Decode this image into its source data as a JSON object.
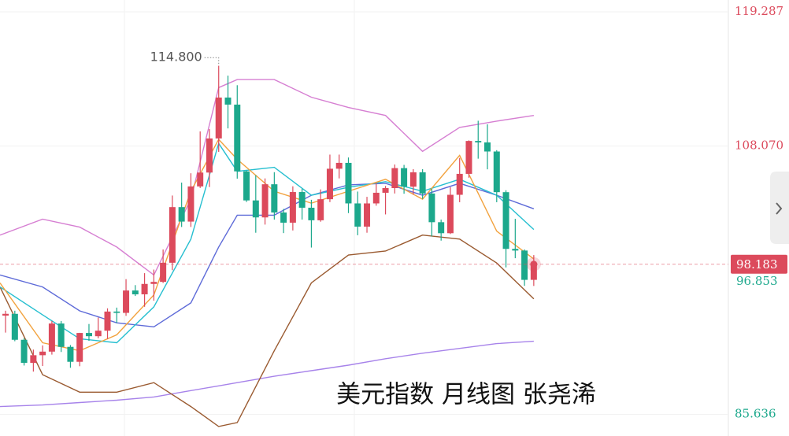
{
  "chart_data": {
    "type": "candlestick",
    "title": "美元指数 月线图 张尧浠",
    "up_color": "#dc4a5c",
    "down_color": "#1ca88c",
    "xlim": [
      -0.6,
      78
    ],
    "ylim": [
      83.827,
      120.274
    ],
    "yticks": [
      119.287,
      {
        "value": 108.07,
        "label": "108.070"
      },
      85.636
    ],
    "grid": true,
    "last_price": 98.183,
    "marker_value": 96.853,
    "peak_annotation": {
      "index": 23,
      "value": 114.8,
      "label": "114.800"
    },
    "open": [
      93.89,
      94.04,
      91.87,
      89.94,
      90.58,
      90.88,
      93.23,
      91.28,
      90.03,
      92.44,
      92.17,
      92.63,
      94.23,
      94.12,
      95.99,
      95.67,
      96.54,
      96.71,
      98.31,
      102.96,
      101.75,
      104.69,
      105.85,
      108.7,
      112.12,
      111.53,
      105.95,
      103.52,
      102.1,
      104.87,
      102.51,
      101.66,
      104.22,
      102.91,
      101.86,
      103.62,
      106.17,
      106.66,
      103.27,
      101.33,
      103.27,
      104.16,
      104.55,
      106.22,
      104.67,
      105.87,
      104.1,
      101.7,
      100.78,
      103.99,
      105.74,
      108.49,
      108.37,
      107.61,
      104.21,
      99.47,
      99.33,
      96.88
    ],
    "high": [
      94.3,
      94.3,
      92.0,
      91.05,
      91.4,
      93.44,
      93.44,
      91.43,
      92.45,
      93.19,
      93.73,
      94.5,
      94.56,
      96.94,
      96.44,
      97.44,
      97.74,
      99.42,
      103.93,
      105.01,
      105.79,
      109.29,
      109.48,
      114.78,
      113.95,
      113.15,
      106.02,
      105.63,
      105.36,
      105.88,
      102.81,
      104.7,
      104.5,
      103.57,
      104.44,
      107.35,
      107.35,
      107.11,
      104.26,
      103.82,
      104.97,
      104.73,
      106.52,
      106.49,
      106.13,
      106.13,
      104.5,
      101.92,
      104.63,
      107.07,
      108.54,
      110.18,
      109.88,
      107.72,
      104.37,
      101.98,
      99.42,
      98.95
    ],
    "low": [
      92.47,
      91.75,
      89.72,
      89.21,
      89.68,
      90.63,
      90.85,
      89.53,
      89.66,
      91.78,
      92.0,
      91.94,
      93.28,
      93.87,
      95.53,
      94.63,
      95.14,
      96.62,
      97.69,
      101.3,
      101.3,
      104.56,
      104.64,
      107.58,
      109.54,
      105.34,
      103.39,
      100.82,
      101.5,
      101.92,
      100.79,
      101.01,
      101.92,
      99.58,
      101.74,
      103.38,
      105.36,
      102.46,
      100.61,
      100.82,
      103.08,
      102.35,
      104.1,
      104.08,
      104.0,
      103.65,
      100.51,
      100.16,
      100.71,
      103.37,
      105.42,
      107.01,
      106.12,
      103.37,
      97.92,
      98.69,
      96.38,
      96.37
    ],
    "close": [
      94.04,
      91.87,
      89.94,
      90.58,
      90.88,
      93.23,
      91.28,
      90.03,
      92.44,
      92.17,
      92.63,
      94.23,
      94.12,
      95.99,
      95.67,
      96.54,
      96.71,
      98.31,
      102.96,
      101.75,
      104.69,
      105.85,
      108.7,
      112.12,
      111.53,
      105.95,
      103.52,
      102.1,
      104.87,
      102.51,
      101.66,
      104.22,
      102.91,
      101.86,
      103.62,
      106.17,
      106.66,
      103.27,
      101.33,
      103.27,
      104.16,
      104.55,
      106.22,
      104.67,
      105.87,
      104.1,
      101.7,
      100.78,
      103.99,
      105.74,
      108.49,
      108.37,
      107.61,
      104.21,
      99.47,
      99.33,
      96.88,
      98.183
    ],
    "series": [
      {
        "color": "#a783ea",
        "x": [
          -0.6,
          4,
          8,
          12,
          16,
          20,
          23,
          25,
          29,
          33,
          37,
          41,
          45,
          49,
          53,
          57
        ],
        "values": [
          86.29,
          86.42,
          86.62,
          86.82,
          87.09,
          87.62,
          88.02,
          88.29,
          88.82,
          89.29,
          89.75,
          90.29,
          90.75,
          91.15,
          91.55,
          91.75
        ]
      },
      {
        "color": "#d67fd2",
        "x": [
          -0.6,
          4,
          8,
          12,
          16,
          20,
          23,
          25,
          29,
          33,
          37,
          41,
          45,
          49,
          53,
          57
        ],
        "values": [
          100.62,
          101.95,
          101.29,
          99.62,
          97.29,
          103.62,
          112.95,
          113.62,
          113.62,
          112.15,
          111.29,
          110.62,
          107.62,
          109.62,
          110.15,
          110.62
        ]
      },
      {
        "color": "#9a5a30",
        "x": [
          -0.6,
          4,
          8,
          12,
          16,
          20,
          23,
          25,
          29,
          33,
          37,
          41,
          45,
          49,
          53,
          57
        ],
        "values": [
          96.29,
          88.95,
          87.49,
          87.49,
          88.29,
          86.29,
          84.62,
          84.95,
          90.95,
          96.62,
          98.95,
          99.29,
          100.62,
          100.29,
          98.29,
          95.29
        ]
      },
      {
        "color": "#5d6ad8",
        "x": [
          -0.6,
          4,
          8,
          12,
          16,
          20,
          23,
          25,
          29,
          33,
          37,
          41,
          45,
          49,
          53,
          57
        ],
        "values": [
          97.29,
          96.29,
          94.29,
          93.29,
          92.95,
          94.95,
          99.62,
          102.29,
          102.29,
          103.95,
          104.82,
          104.95,
          103.95,
          104.95,
          103.95,
          102.82
        ]
      },
      {
        "color": "#26bfd0",
        "x": [
          -0.6,
          4,
          8,
          12,
          16,
          20,
          23,
          25,
          29,
          33,
          37,
          41,
          45,
          49,
          53,
          57
        ],
        "values": [
          96.29,
          93.95,
          91.95,
          91.62,
          94.62,
          100.29,
          108.29,
          105.95,
          106.29,
          103.95,
          104.62,
          105.09,
          104.29,
          105.29,
          103.95,
          101.09
        ]
      },
      {
        "color": "#f2a23e",
        "x": [
          -0.6,
          4,
          8,
          12,
          16,
          20,
          23,
          25,
          29,
          33,
          37,
          41,
          45,
          49,
          53,
          57
        ],
        "values": [
          96.62,
          91.62,
          90.95,
          92.29,
          95.62,
          104.29,
          108.62,
          106.95,
          104.29,
          103.29,
          104.29,
          105.29,
          103.62,
          107.29,
          100.95,
          98.62
        ]
      }
    ]
  }
}
